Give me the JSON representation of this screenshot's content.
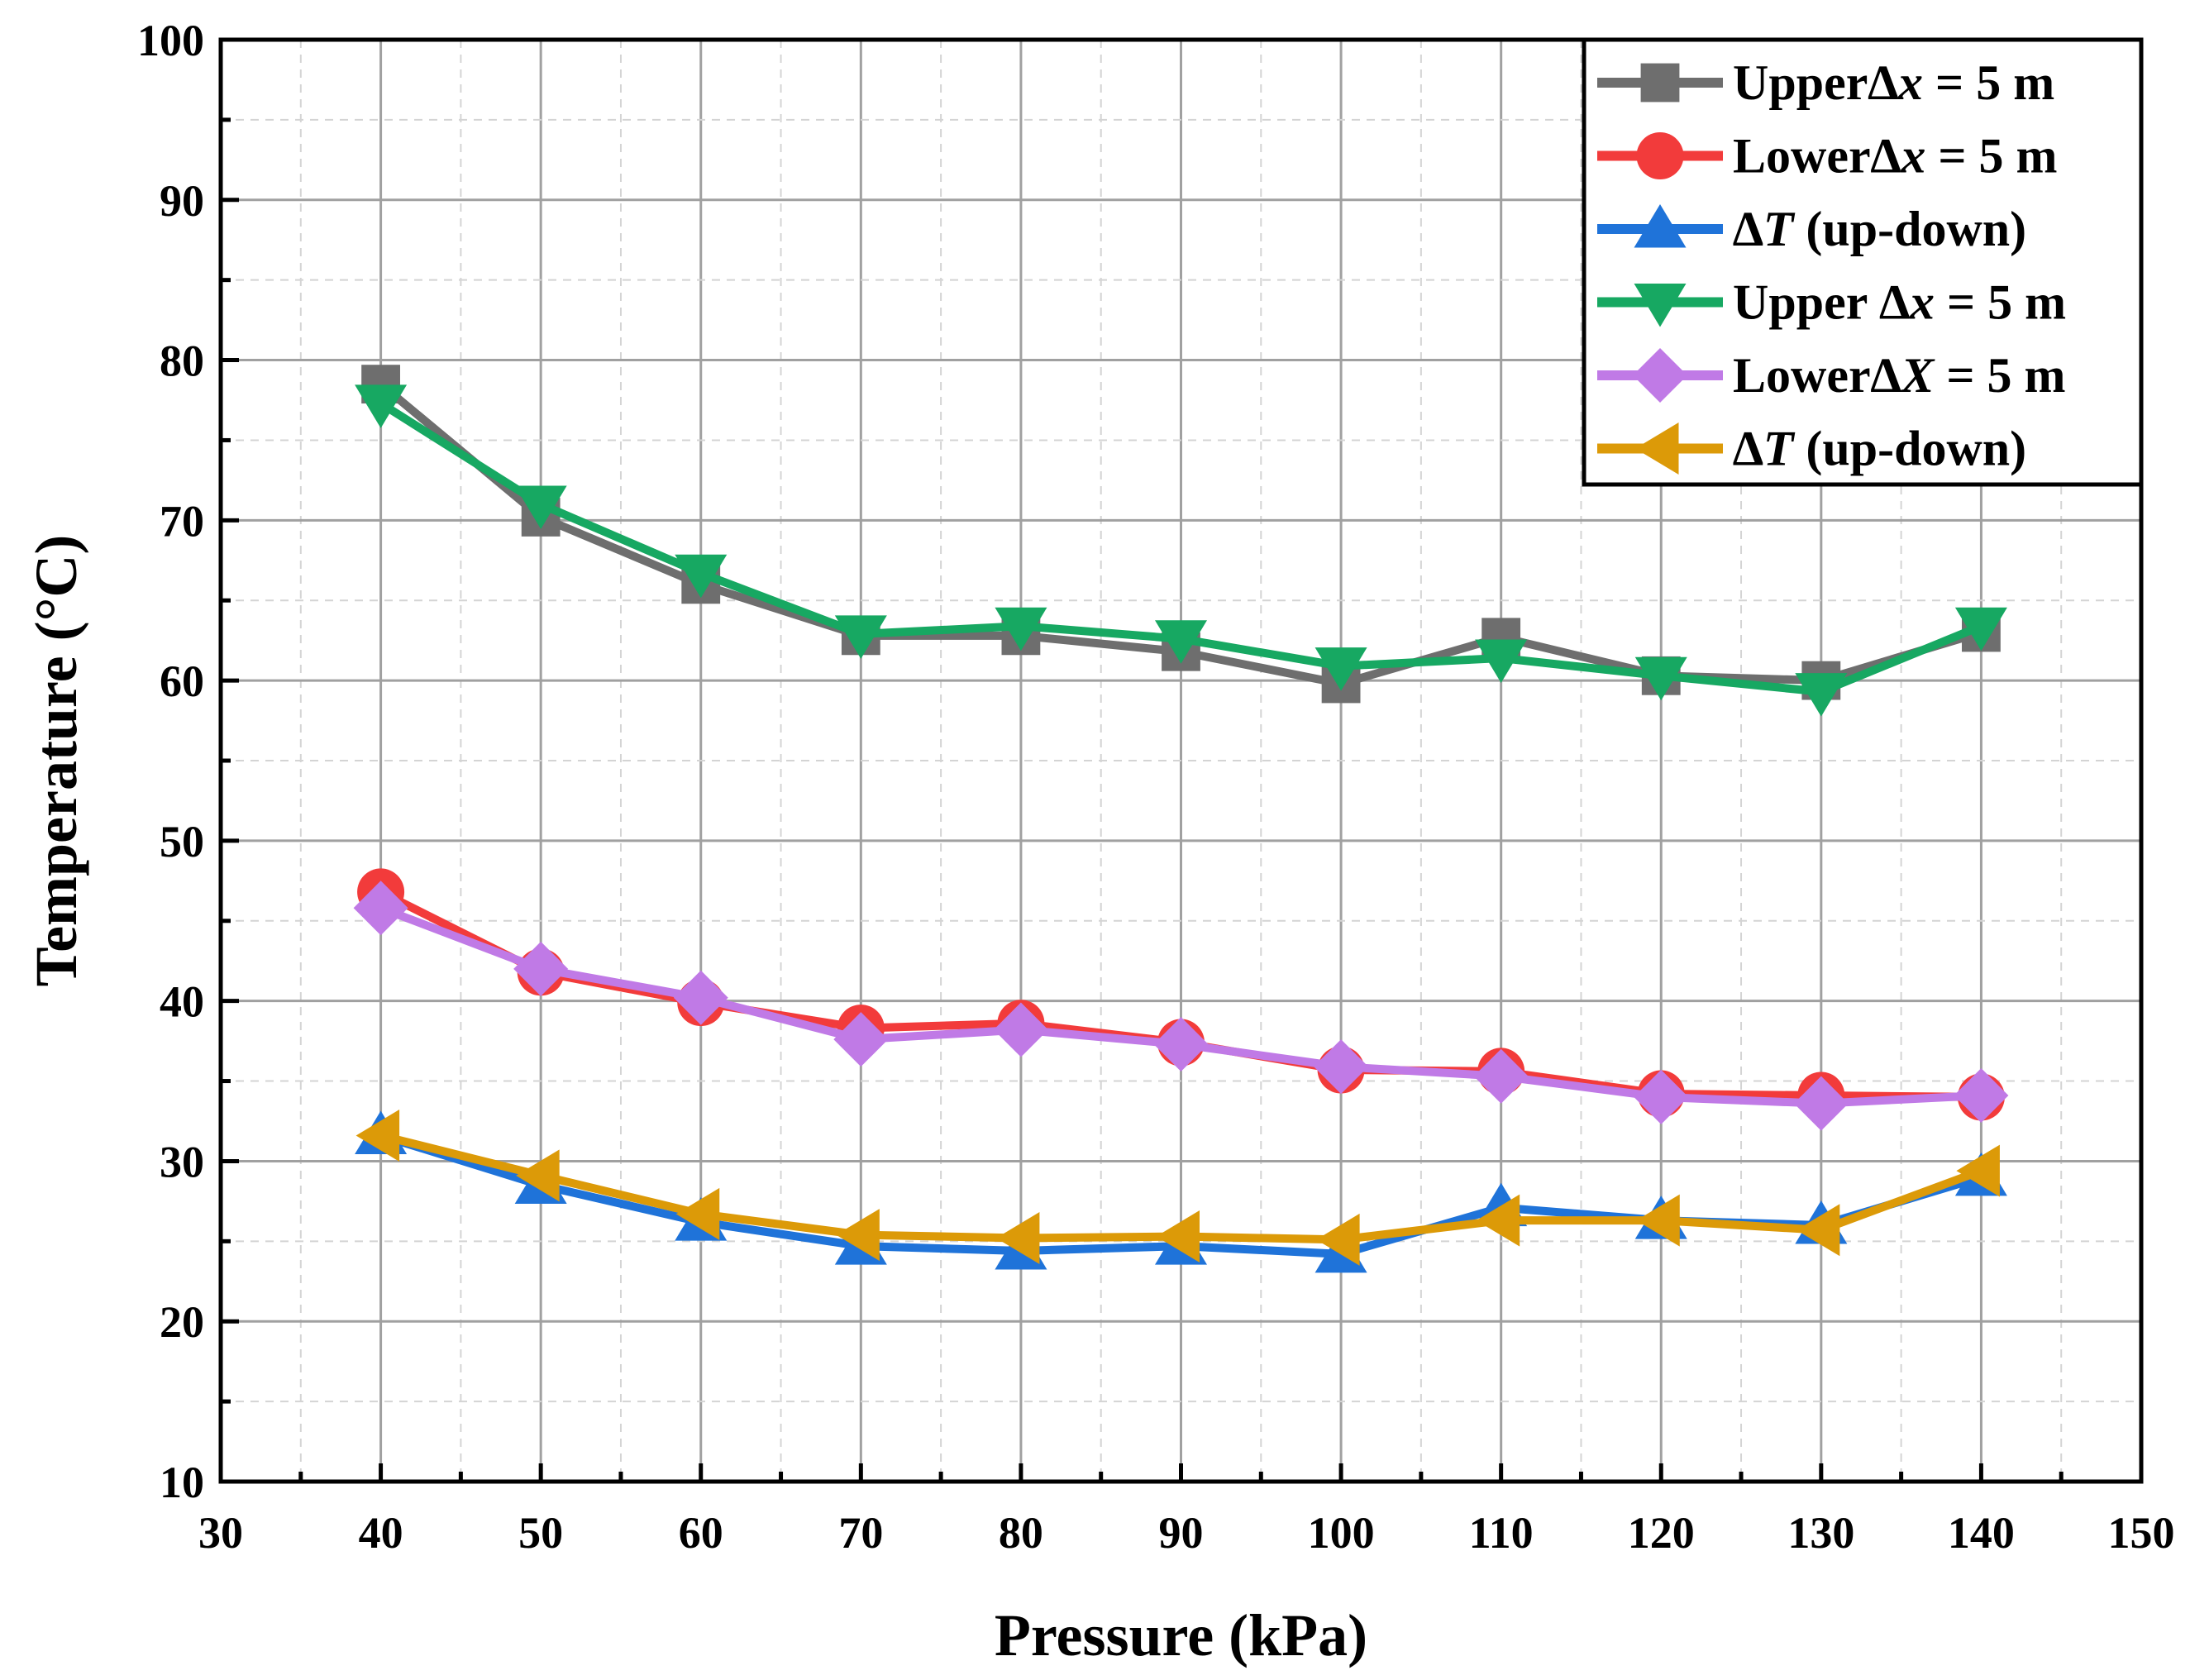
{
  "chart_data": {
    "type": "line",
    "xlabel": "Pressure (kPa)",
    "ylabel": "Temperature (°C)",
    "xlim": [
      30,
      150
    ],
    "ylim": [
      10,
      100
    ],
    "xticks": [
      30,
      40,
      50,
      60,
      70,
      80,
      90,
      100,
      110,
      120,
      130,
      140,
      150
    ],
    "yticks": [
      10,
      20,
      30,
      40,
      50,
      60,
      70,
      80,
      90,
      100
    ],
    "grid": true,
    "legend_position": "top-right",
    "x": [
      40,
      50,
      60,
      70,
      80,
      90,
      100,
      110,
      120,
      130,
      140
    ],
    "series": [
      {
        "name": "Upper∆x = 5 m",
        "legend": {
          "pre": "Upper∆",
          "var": "x",
          "post": " = 5 m"
        },
        "color": "#6e6e6e",
        "marker": "square",
        "values": [
          78.5,
          70.2,
          66.0,
          62.8,
          62.8,
          61.8,
          59.8,
          62.7,
          60.3,
          60.0,
          63.0
        ]
      },
      {
        "name": "Lower∆x = 5 m",
        "legend": {
          "pre": "Lower∆",
          "var": "x",
          "post": " = 5 m"
        },
        "color": "#f23b3b",
        "marker": "circle",
        "values": [
          46.8,
          41.8,
          39.9,
          38.3,
          38.6,
          37.4,
          35.7,
          35.6,
          34.2,
          34.1,
          34.0
        ]
      },
      {
        "name": "∆T (up-down)",
        "legend": {
          "pre": "∆",
          "var": "T",
          "post": " (up-down)"
        },
        "color": "#1f73d9",
        "marker": "triangle-up",
        "values": [
          31.6,
          28.5,
          26.2,
          24.7,
          24.4,
          24.7,
          24.2,
          27.1,
          26.3,
          26.0,
          29.0
        ]
      },
      {
        "name": "Upper ∆x = 5 m",
        "legend": {
          "pre": "Upper ∆",
          "var": "x",
          "post": " = 5 m"
        },
        "color": "#17a862",
        "marker": "triangle-down",
        "values": [
          77.3,
          71.0,
          66.7,
          62.9,
          63.4,
          62.6,
          60.9,
          61.4,
          60.3,
          59.3,
          63.4
        ]
      },
      {
        "name": "Lower∆X = 5 m",
        "legend": {
          "pre": "Lower∆",
          "var": "X",
          "post": " = 5 m"
        },
        "color": "#c07ae6",
        "marker": "diamond",
        "values": [
          45.8,
          42.0,
          40.2,
          37.6,
          38.2,
          37.3,
          35.9,
          35.3,
          34.0,
          33.6,
          34.1
        ]
      },
      {
        "name": "∆T (up-down)",
        "legend": {
          "pre": "∆",
          "var": "T",
          "post": " (up-down)"
        },
        "color": "#dc9a08",
        "marker": "triangle-left",
        "values": [
          31.6,
          29.1,
          26.7,
          25.4,
          25.2,
          25.3,
          25.1,
          26.3,
          26.3,
          25.7,
          29.4
        ]
      }
    ]
  }
}
